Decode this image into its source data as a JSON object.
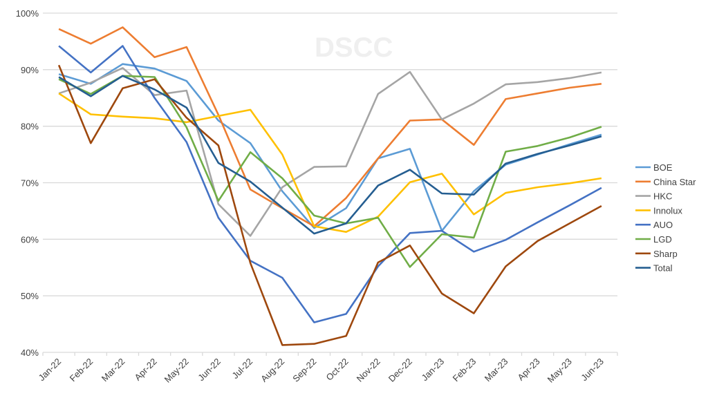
{
  "chart_data": {
    "type": "line",
    "title": "",
    "xlabel": "",
    "ylabel": "",
    "watermark": "DSCC",
    "ylim": [
      40,
      100
    ],
    "yticks": [
      "40%",
      "50%",
      "60%",
      "70%",
      "80%",
      "90%",
      "100%"
    ],
    "grid": true,
    "legend_position": "right",
    "categories": [
      "Jan-22",
      "Feb-22",
      "Mar-22",
      "Apr-22",
      "May-22",
      "Jun-22",
      "Jul-22",
      "Aug-22",
      "Sep-22",
      "Oct-22",
      "Nov-22",
      "Dec-22",
      "Jan-23",
      "Feb-23",
      "Mar-23",
      "Apr-23",
      "May-23",
      "Jun-23"
    ],
    "series": [
      {
        "name": "BOE",
        "color": "#5b9bd5",
        "values": [
          89.2,
          87.5,
          91,
          90.2,
          88,
          81,
          77,
          68.5,
          62,
          65.5,
          74.3,
          76,
          61.5,
          68.5,
          73.2,
          75,
          76.8,
          78.5
        ]
      },
      {
        "name": "China Star",
        "color": "#ed7d31",
        "values": [
          97.2,
          94.6,
          97.5,
          92.2,
          94,
          82,
          68.8,
          65.5,
          62.3,
          67.3,
          74.3,
          81,
          81.2,
          76.7,
          84.8,
          85.8,
          86.8,
          87.5
        ]
      },
      {
        "name": "HKC",
        "color": "#a5a5a5",
        "values": [
          85.8,
          87.7,
          90.3,
          85.5,
          86.3,
          66.2,
          60.6,
          69.2,
          72.8,
          72.9,
          85.7,
          89.6,
          81.2,
          84,
          87.4,
          87.8,
          88.5,
          89.5
        ]
      },
      {
        "name": "Innolux",
        "color": "#ffc000",
        "values": [
          85.8,
          82.1,
          81.7,
          81.4,
          80.7,
          81.8,
          82.9,
          75,
          62.3,
          61.3,
          64,
          70.1,
          71.6,
          64.4,
          68.2,
          69.2,
          69.9,
          70.8
        ]
      },
      {
        "name": "AUO",
        "color": "#4472c4",
        "values": [
          94.2,
          89.5,
          94.2,
          85,
          77.2,
          63.8,
          56.2,
          53.2,
          45.3,
          46.8,
          55.2,
          61.1,
          61.5,
          57.8,
          59.9,
          63,
          66,
          69.1
        ]
      },
      {
        "name": "LGD",
        "color": "#70ad47",
        "values": [
          88.3,
          85.7,
          88.9,
          88.7,
          79.8,
          66.8,
          75.4,
          70.8,
          64.2,
          62.8,
          63.8,
          55.1,
          60.9,
          60.3,
          75.5,
          76.5,
          78,
          79.9
        ]
      },
      {
        "name": "Sharp",
        "color": "#9e480e",
        "values": [
          90.8,
          77,
          86.7,
          88.3,
          81.5,
          76.6,
          55.8,
          41.3,
          41.5,
          42.9,
          55.9,
          58.9,
          50.4,
          46.9,
          55.2,
          59.7,
          62.8,
          65.9
        ]
      },
      {
        "name": "Total",
        "color": "#255e91",
        "values": [
          88.7,
          85.3,
          88.9,
          86.5,
          83.3,
          73.5,
          70.2,
          65.6,
          61,
          62.8,
          69.5,
          72.3,
          68.1,
          67.9,
          73.4,
          75.1,
          76.6,
          78.2
        ]
      }
    ]
  }
}
